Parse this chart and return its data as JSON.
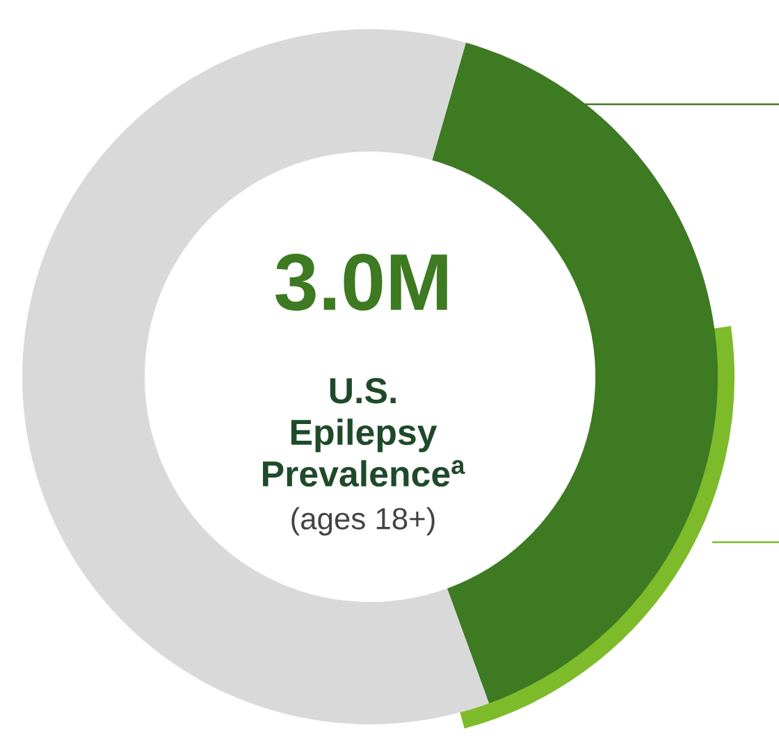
{
  "chart_data": {
    "type": "donut",
    "title": "3.0M",
    "subtitle": "U.S. Epilepsy Prevalence$^{a}$",
    "annotations": [
      "(ages 18+)"
    ],
    "categories": [
      null,
      null
    ],
    "values": [
      40,
      60
    ],
    "colors": [
      "#3d7a22",
      "#d9d9d9"
    ]
  }
}
